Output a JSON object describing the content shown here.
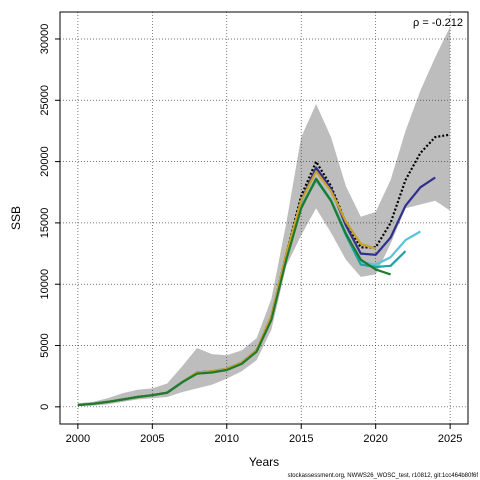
{
  "chart_data": {
    "type": "line",
    "xlabel": "Years",
    "ylabel": "SSB",
    "xlim": [
      1998.8,
      2026.2
    ],
    "ylim": [
      -1400,
      32200
    ],
    "xticks": [
      2000,
      2005,
      2010,
      2015,
      2020,
      2025
    ],
    "xtick_labels": [
      "2000",
      "2005",
      "2010",
      "2015",
      "2020",
      "2025"
    ],
    "yticks": [
      0,
      5000,
      10000,
      15000,
      20000,
      25000,
      30000
    ],
    "ytick_labels": [
      "0",
      "5000",
      "10000",
      "15000",
      "20000",
      "25000",
      "30000"
    ],
    "grid": true,
    "annotation": "ρ = -0.212",
    "footer": "stockassessment.org, NWWS26_WOSC_test, r10812, git:1cc464b80f6f",
    "confidence_band": {
      "x": [
        2000,
        2001,
        2002,
        2003,
        2004,
        2005,
        2006,
        2007,
        2008,
        2009,
        2010,
        2011,
        2012,
        2013,
        2014,
        2015,
        2016,
        2017,
        2018,
        2019,
        2020,
        2021,
        2022,
        2023,
        2024,
        2025
      ],
      "upper": [
        300,
        400,
        700,
        1100,
        1400,
        1500,
        1900,
        3300,
        4800,
        4300,
        4200,
        4600,
        5600,
        8800,
        15000,
        22000,
        24700,
        22000,
        18000,
        15500,
        15900,
        18500,
        22500,
        25800,
        28500,
        31000
      ],
      "lower": [
        50,
        100,
        200,
        400,
        600,
        700,
        800,
        1200,
        1500,
        1800,
        2300,
        2900,
        3800,
        6300,
        11500,
        14000,
        16200,
        14200,
        12000,
        10600,
        10800,
        13300,
        16200,
        16500,
        16800,
        16000
      ]
    },
    "series": [
      {
        "color": "#000000",
        "dash": "2,2",
        "x": [
          2000,
          2001,
          2002,
          2003,
          2004,
          2005,
          2006,
          2007,
          2008,
          2009,
          2010,
          2011,
          2012,
          2013,
          2014,
          2015,
          2016,
          2017,
          2018,
          2019,
          2020,
          2021,
          2022,
          2023,
          2024,
          2025
        ],
        "values": [
          150,
          250,
          400,
          600,
          800,
          950,
          1150,
          2000,
          2800,
          2900,
          3100,
          3600,
          4600,
          7400,
          12500,
          17200,
          20000,
          18000,
          15000,
          13000,
          13000,
          15000,
          18500,
          20700,
          22000,
          22200
        ]
      },
      {
        "color": "#2f2f8f",
        "dash": "",
        "x": [
          2000,
          2001,
          2002,
          2003,
          2004,
          2005,
          2006,
          2007,
          2008,
          2009,
          2010,
          2011,
          2012,
          2013,
          2014,
          2015,
          2016,
          2017,
          2018,
          2019,
          2020,
          2021,
          2022,
          2023,
          2024
        ],
        "values": [
          150,
          250,
          400,
          600,
          800,
          950,
          1150,
          2000,
          2800,
          2900,
          3100,
          3600,
          4600,
          7300,
          12300,
          16800,
          19500,
          17800,
          14800,
          12500,
          12400,
          13800,
          16400,
          17900,
          18700
        ]
      },
      {
        "color": "#57c4d8",
        "dash": "",
        "x": [
          2000,
          2001,
          2002,
          2003,
          2004,
          2005,
          2006,
          2007,
          2008,
          2009,
          2010,
          2011,
          2012,
          2013,
          2014,
          2015,
          2016,
          2017,
          2018,
          2019,
          2020,
          2021,
          2022,
          2023
        ],
        "values": [
          150,
          250,
          400,
          600,
          800,
          950,
          1150,
          2000,
          2800,
          2900,
          3100,
          3600,
          4600,
          7200,
          12200,
          16400,
          18600,
          16900,
          14200,
          11800,
          11600,
          12200,
          13600,
          14300
        ]
      },
      {
        "color": "#1aa3a3",
        "dash": "",
        "x": [
          2000,
          2001,
          2002,
          2003,
          2004,
          2005,
          2006,
          2007,
          2008,
          2009,
          2010,
          2011,
          2012,
          2013,
          2014,
          2015,
          2016,
          2017,
          2018,
          2019,
          2020,
          2021,
          2022
        ],
        "values": [
          150,
          250,
          400,
          600,
          800,
          950,
          1150,
          2000,
          2800,
          2900,
          3100,
          3600,
          4600,
          7200,
          12200,
          16300,
          18500,
          16800,
          14000,
          11600,
          11400,
          11500,
          12700
        ]
      },
      {
        "color": "#c9a227",
        "dash": "",
        "x": [
          2000,
          2001,
          2002,
          2003,
          2004,
          2005,
          2006,
          2007,
          2008,
          2009,
          2010,
          2011,
          2012,
          2013,
          2014,
          2015,
          2016,
          2017,
          2018,
          2019,
          2020
        ],
        "values": [
          150,
          250,
          400,
          600,
          800,
          950,
          1150,
          2000,
          2800,
          2900,
          3100,
          3600,
          4600,
          7400,
          12500,
          16800,
          19200,
          17600,
          15100,
          13300,
          12900
        ]
      },
      {
        "color": "#1f7a2e",
        "dash": "",
        "x": [
          2000,
          2001,
          2002,
          2003,
          2004,
          2005,
          2006,
          2007,
          2008,
          2009,
          2010,
          2011,
          2012,
          2013,
          2014,
          2015,
          2016,
          2017,
          2018,
          2019,
          2020,
          2021
        ],
        "values": [
          150,
          250,
          400,
          600,
          800,
          950,
          1150,
          2000,
          2700,
          2800,
          3000,
          3500,
          4500,
          7100,
          12000,
          16200,
          18600,
          16800,
          14100,
          12000,
          11200,
          10800
        ]
      }
    ]
  }
}
